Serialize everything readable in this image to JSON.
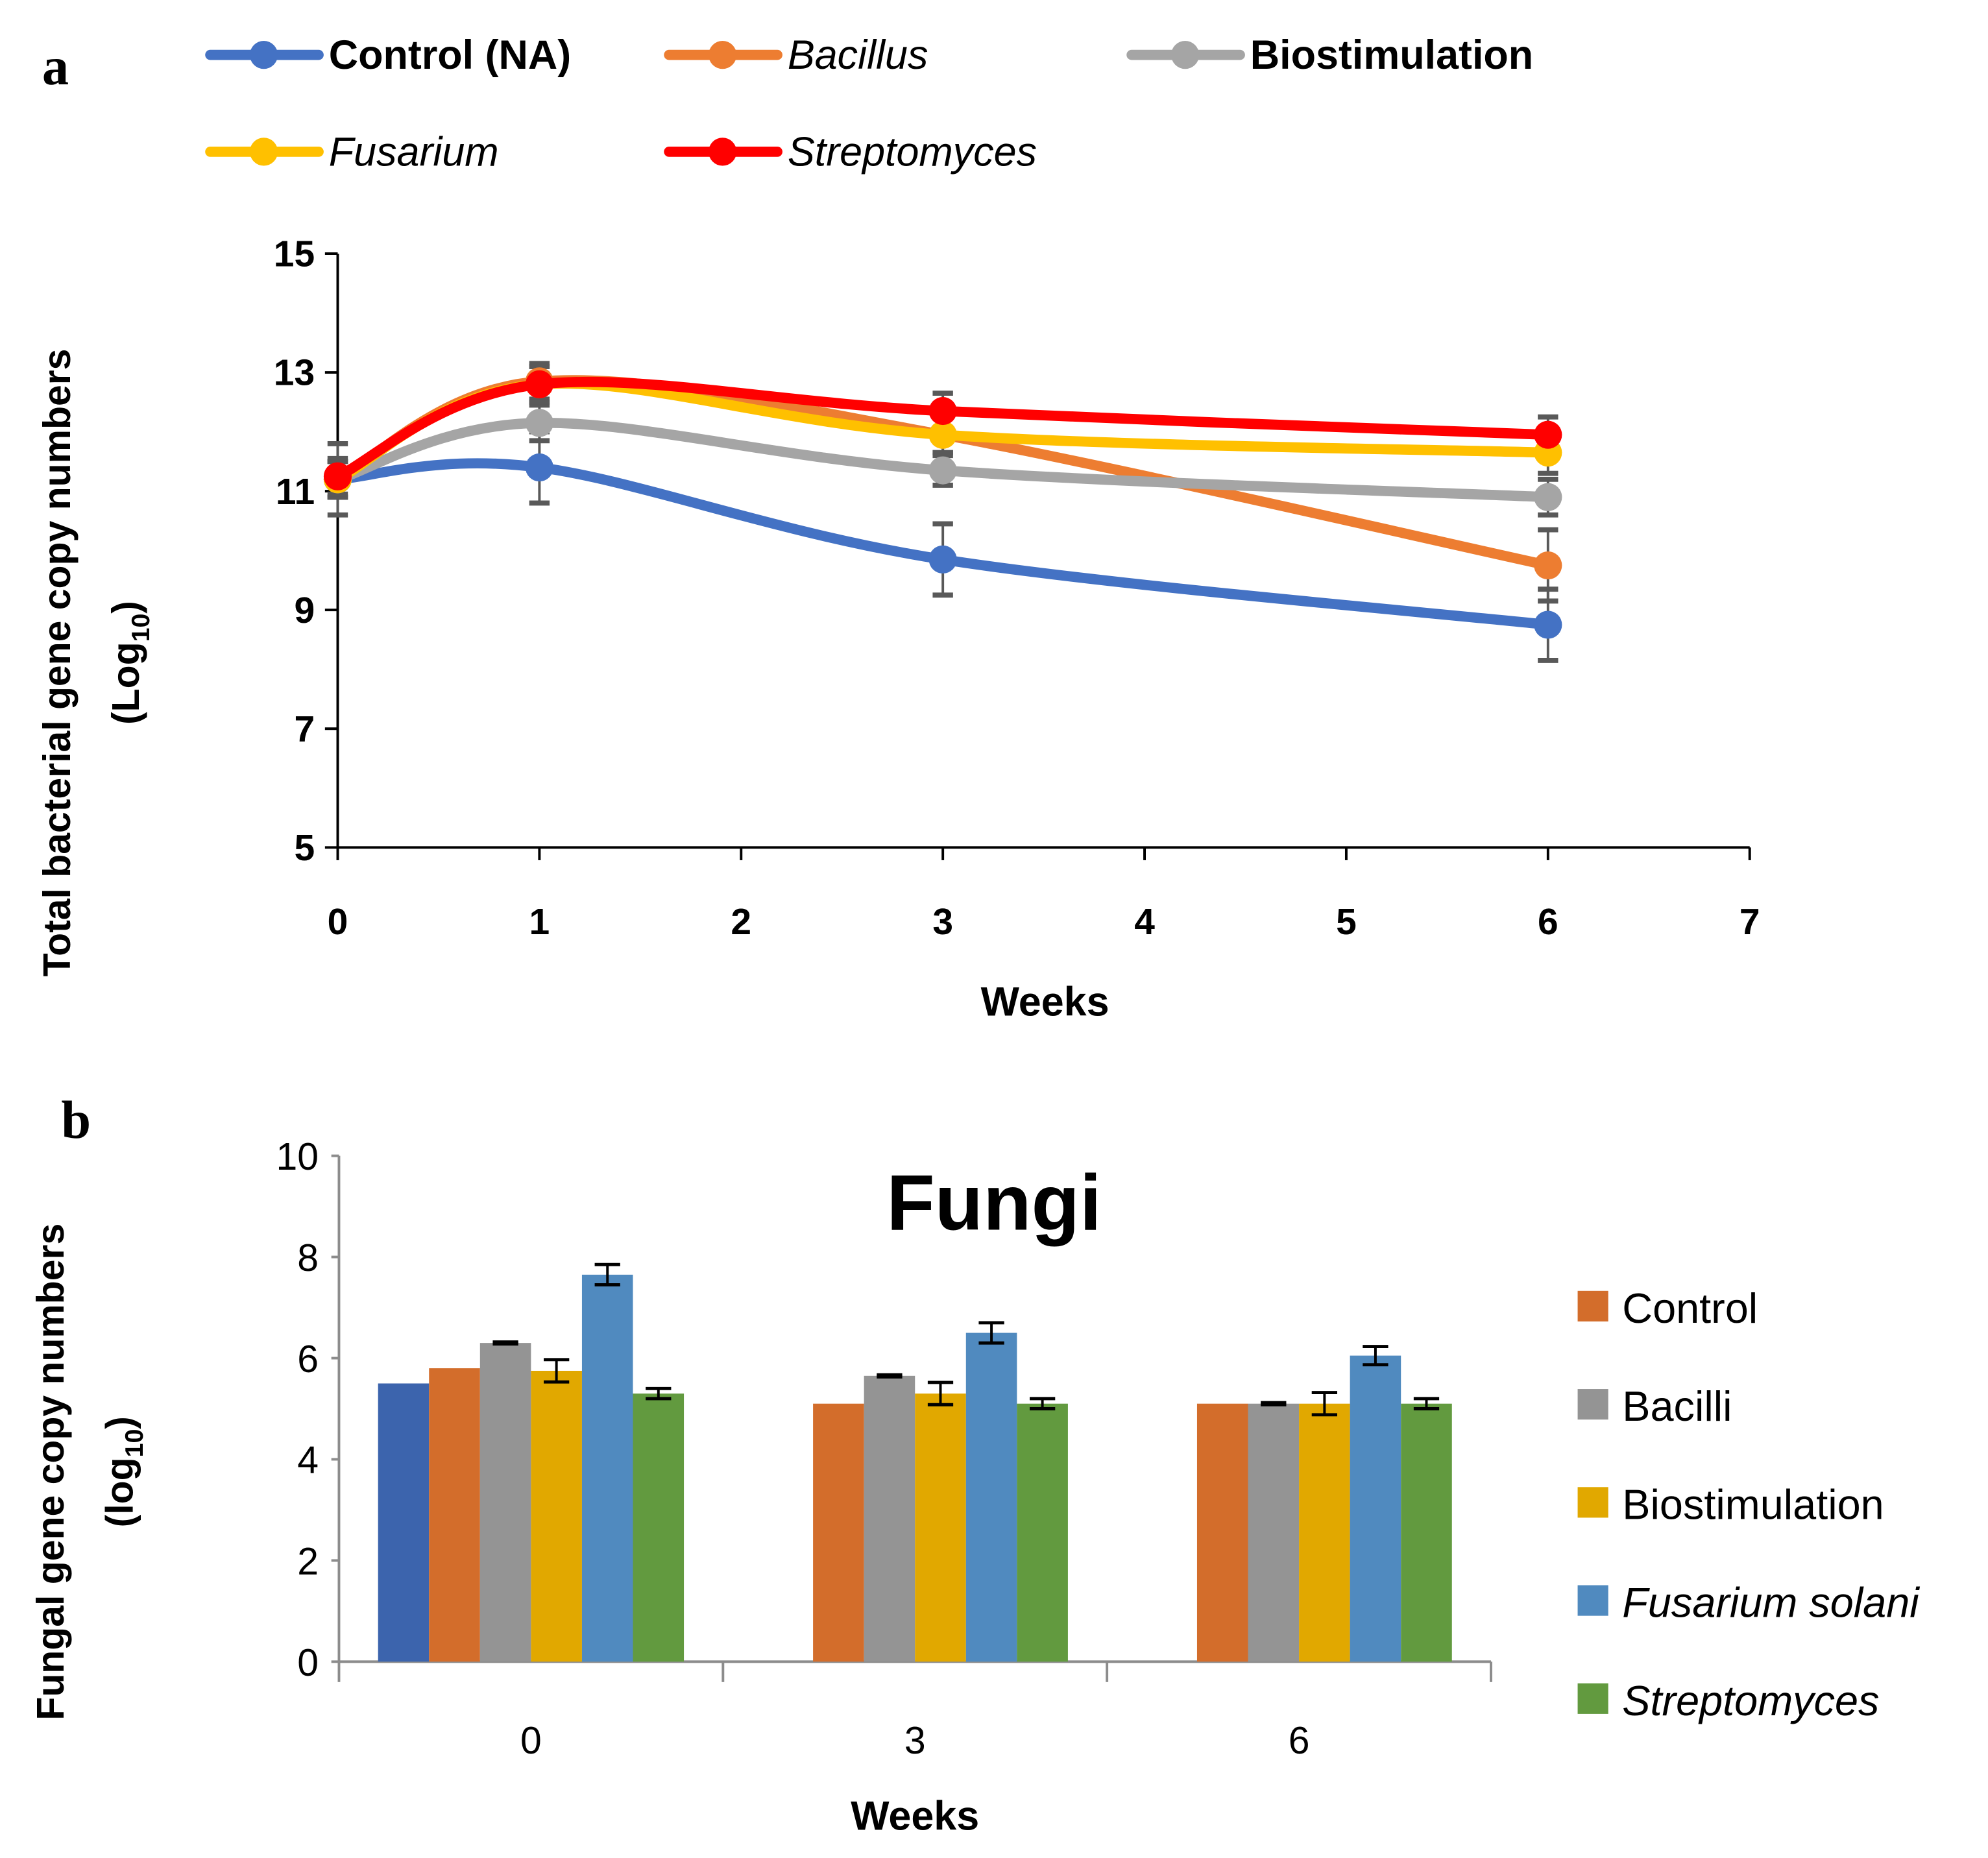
{
  "chart_data": [
    {
      "type": "line",
      "panel_label": "a",
      "title": "",
      "xlabel": "Weeks",
      "ylabel_lines": [
        "Total bacterial gene copy numbers",
        "(Log",
        "10",
        ")"
      ],
      "xlim": [
        0,
        7
      ],
      "ylim": [
        5,
        15
      ],
      "xticks": [
        0,
        1,
        2,
        3,
        4,
        5,
        6,
        7
      ],
      "yticks": [
        5,
        7,
        9,
        11,
        13,
        15
      ],
      "grid": false,
      "legend_position": "top",
      "x": [
        0,
        1,
        3,
        6
      ],
      "series": [
        {
          "name": "Control (NA)",
          "italic": false,
          "color": "#4472C4",
          "values": [
            11.2,
            11.4,
            9.85,
            8.75
          ],
          "errors": [
            0.6,
            0.6,
            0.6,
            0.6
          ]
        },
        {
          "name": "Bacillus",
          "italic": true,
          "color": "#ED7D31",
          "values": [
            11.2,
            12.85,
            11.95,
            9.75
          ],
          "errors": [
            0.3,
            0.3,
            0.3,
            0.6
          ]
        },
        {
          "name": "Biostimulation",
          "italic": false,
          "color": "#A5A5A5",
          "values": [
            11.2,
            12.15,
            11.35,
            10.9
          ],
          "errors": [
            0.3,
            0.3,
            0.25,
            0.3
          ]
        },
        {
          "name": "Fusarium",
          "italic": true,
          "color": "#FFC000",
          "values": [
            11.2,
            12.8,
            11.95,
            11.65
          ],
          "errors": [
            0.3,
            0.3,
            0.3,
            0.35
          ]
        },
        {
          "name": "Streptomyces",
          "italic": true,
          "color": "#FF0000",
          "values": [
            11.25,
            12.8,
            12.35,
            11.95
          ],
          "errors": [
            0.3,
            0.3,
            0.3,
            0.3
          ]
        }
      ]
    },
    {
      "type": "bar",
      "panel_label": "b",
      "title": "Fungi",
      "xlabel": "Weeks",
      "ylabel_lines": [
        "Fungal gene copy numbers",
        "(log",
        "10",
        ")"
      ],
      "categories": [
        "0",
        "3",
        "6"
      ],
      "ylim": [
        0,
        10
      ],
      "yticks": [
        0,
        2,
        4,
        6,
        8,
        10
      ],
      "grid": false,
      "legend_position": "right",
      "series": [
        {
          "name": "",
          "italic": false,
          "color": "#3C64AD",
          "values": [
            5.5,
            null,
            null
          ],
          "errors": [
            0,
            0,
            0
          ]
        },
        {
          "name": "Control",
          "italic": false,
          "color": "#D36D2B",
          "values": [
            5.8,
            5.1,
            5.1
          ],
          "errors": [
            0,
            0,
            0
          ]
        },
        {
          "name": "Bacilli",
          "italic": false,
          "color": "#949494",
          "values": [
            6.3,
            5.65,
            5.1
          ],
          "errors": [
            0.02,
            0.02,
            0.02
          ]
        },
        {
          "name": "Biostimulation",
          "italic": false,
          "color": "#E1A800",
          "values": [
            5.75,
            5.3,
            5.1
          ],
          "errors": [
            0.22,
            0.22,
            0.22
          ]
        },
        {
          "name": "Fusarium solani",
          "italic": true,
          "color": "#508ABF",
          "values": [
            7.65,
            6.5,
            6.05
          ],
          "errors": [
            0.2,
            0.2,
            0.18
          ]
        },
        {
          "name": "Streptomyces",
          "italic": true,
          "color": "#629A3F",
          "values": [
            5.3,
            5.1,
            5.1
          ],
          "errors": [
            0.1,
            0.1,
            0.1
          ]
        }
      ]
    }
  ]
}
